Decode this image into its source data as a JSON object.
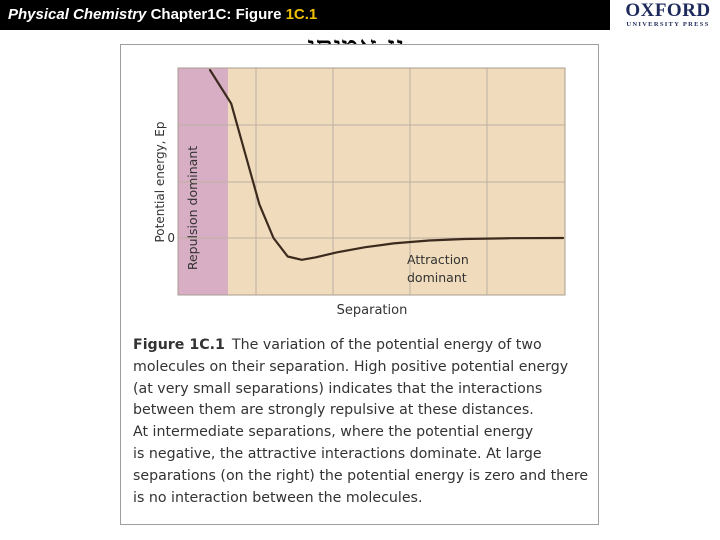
{
  "header": {
    "title_italic": "Physical Chemistry",
    "title_plain": " Chapter1C: Figure ",
    "title_highlight": "1C.1",
    "highlight_color": "#f2c200"
  },
  "logo": {
    "name": "OXFORD",
    "subname": "UNIVERSITY PRESS"
  },
  "hebrew_title": "גז אמיתי",
  "chart_data": {
    "type": "line",
    "ylabel": "Potential energy, Ep",
    "xlabel": "Separation",
    "y_tick_label": "0",
    "regions": [
      {
        "label": "Repulsion dominant",
        "color": "#d8aec4"
      },
      {
        "label_lines": [
          "Attraction",
          "dominant"
        ],
        "color": "#f0dcbc"
      }
    ],
    "grid": true,
    "curve_color": "#3c2a1e",
    "series": [
      {
        "x": [
          0.0,
          0.06,
          0.1,
          0.14,
          0.18,
          0.22,
          0.26,
          0.3,
          0.36,
          0.44,
          0.52,
          0.62,
          0.72,
          0.85,
          1.0
        ],
        "y": [
          1.0,
          0.8,
          0.5,
          0.2,
          0.0,
          -0.11,
          -0.13,
          -0.115,
          -0.085,
          -0.055,
          -0.032,
          -0.015,
          -0.006,
          -0.001,
          0.0
        ]
      }
    ]
  },
  "caption": {
    "label": "Figure 1C.1",
    "lines": [
      "The variation of the potential energy of two",
      "molecules on their separation. High positive potential energy",
      "(at very small separations) indicates that the interactions",
      "between them are strongly repulsive at these distances.",
      "At intermediate separations, where the potential energy",
      "is negative, the attractive interactions dominate. At large",
      "separations (on the right) the potential energy is zero and there",
      "is no interaction between the molecules."
    ]
  }
}
